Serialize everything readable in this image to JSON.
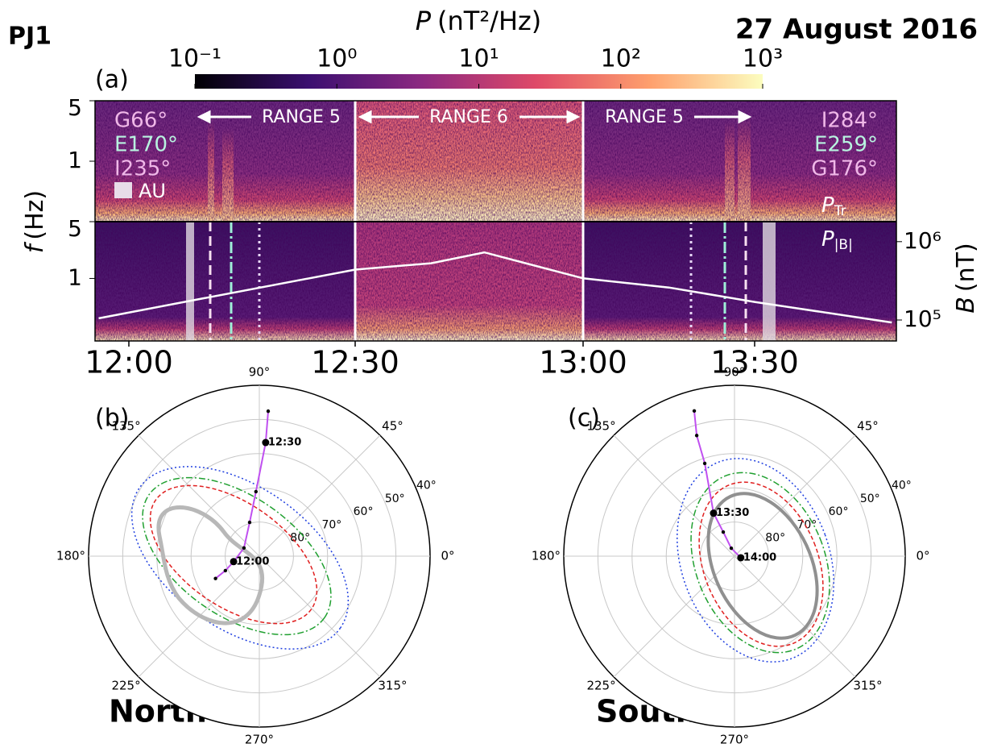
{
  "header": {
    "panel_id": "PJ1",
    "date": "27 August 2016"
  },
  "chart_data": [
    {
      "type": "spectrogram",
      "label": "(a)",
      "colorbar": {
        "title_var": "P",
        "title_unit": "(nT²/Hz)",
        "lim": [
          0.1,
          1000
        ],
        "ticks": [
          {
            "value": 0.1,
            "label": "10⁻¹"
          },
          {
            "value": 1,
            "label": "10⁰"
          },
          {
            "value": 10,
            "label": "10¹"
          },
          {
            "value": 100,
            "label": "10²"
          },
          {
            "value": 1000,
            "label": "10³"
          }
        ]
      },
      "xticks": [
        "12:00",
        "12:30",
        "13:00",
        "13:30"
      ],
      "ylabel_var": "f",
      "ylabel_unit": "(Hz)",
      "panels": [
        {
          "ylim": [
            0.2,
            5
          ],
          "yticks": [
            1,
            5
          ],
          "label_var": "P",
          "label_sub": "Tr"
        },
        {
          "ylim": [
            0.17,
            5
          ],
          "yticks": [
            1,
            5
          ],
          "label_var": "P",
          "label_sub": "|B|"
        }
      ],
      "ranges": [
        "RANGE 5",
        "RANGE 6",
        "RANGE 5"
      ],
      "left_labels": [
        "G66°",
        "E170°",
        "I235°"
      ],
      "right_labels": [
        "I284°",
        "E259°",
        "G176°"
      ],
      "au_label": "AU",
      "b_field": {
        "ylabel_var": "B",
        "ylabel_unit": "(nT)",
        "log": true,
        "ylim": [
          54000,
          1800000
        ],
        "yticks": [
          {
            "value": 100000,
            "label": "10⁵"
          },
          {
            "value": 1000000,
            "label": "10⁶"
          }
        ],
        "color": "#ffffff",
        "x": [
          "11:56",
          "12:10",
          "12:30",
          "12:40",
          "12:47",
          "13:00",
          "13:15",
          "13:30",
          "13:54"
        ],
        "values": [
          105000,
          190000,
          440000,
          530000,
          730000,
          340000,
          260000,
          170000,
          93000
        ]
      }
    },
    {
      "type": "polar",
      "label": "(b)",
      "hemisphere": "North",
      "rlim": [
        90,
        40
      ],
      "angle_ticks": [
        {
          "value": 0,
          "label": "0°"
        },
        {
          "value": 45,
          "label": "45°"
        },
        {
          "value": 90,
          "label": "90°"
        },
        {
          "value": 135,
          "label": "135°"
        },
        {
          "value": 180,
          "label": "180°"
        },
        {
          "value": 225,
          "label": "225°"
        },
        {
          "value": 270,
          "label": "270°"
        },
        {
          "value": 315,
          "label": "315°"
        }
      ],
      "lat_ticks": [
        {
          "value": 80,
          "label": "80°"
        },
        {
          "value": 70,
          "label": "70°"
        },
        {
          "value": 60,
          "label": "60°"
        },
        {
          "value": 50,
          "label": "50°"
        },
        {
          "value": 40,
          "label": "40°"
        }
      ],
      "track": {
        "color": "#c050f0",
        "lon": [
          207,
          203,
          192,
          152,
          106,
          93,
          86.8,
          86.5
        ],
        "lat": [
          75.6,
          79.2,
          82.3,
          84.9,
          79.7,
          71.1,
          56.7,
          47.5
        ],
        "times": [
          null,
          null,
          "12:00",
          null,
          null,
          null,
          "12:30",
          null
        ]
      }
    },
    {
      "type": "polar",
      "label": "(c)",
      "hemisphere": "South",
      "rlim": [
        90,
        40
      ],
      "angle_ticks": [
        {
          "value": 0,
          "label": "0°"
        },
        {
          "value": 45,
          "label": "45°"
        },
        {
          "value": 90,
          "label": "90°"
        },
        {
          "value": 135,
          "label": "135°"
        },
        {
          "value": 180,
          "label": "180°"
        },
        {
          "value": 225,
          "label": "225°"
        },
        {
          "value": 270,
          "label": "270°"
        },
        {
          "value": 315,
          "label": "315°"
        }
      ],
      "lat_ticks": [
        {
          "value": 80,
          "label": "80°"
        },
        {
          "value": 70,
          "label": "70°"
        },
        {
          "value": 60,
          "label": "60°"
        },
        {
          "value": 50,
          "label": "50°"
        },
        {
          "value": 40,
          "label": "40°"
        }
      ],
      "track": {
        "color": "#c050f0",
        "lon": [
          105.5,
          107.4,
          107.8,
          116,
          115,
          112,
          346
        ],
        "lat": [
          45.9,
          53,
          61.5,
          76,
          82.2,
          87.5,
          88.1
        ],
        "times": [
          null,
          null,
          null,
          "13:30",
          null,
          null,
          "14:00"
        ]
      }
    }
  ]
}
